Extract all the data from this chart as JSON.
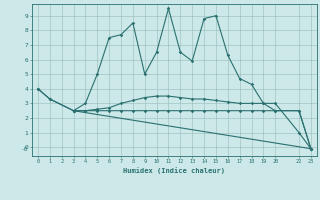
{
  "xlabel": "Humidex (Indice chaleur)",
  "bg_color": "#cce8e8",
  "grid_color": "#99bbbb",
  "line_color": "#2a7070",
  "series": [
    {
      "x": [
        0,
        1,
        3,
        4,
        5,
        6,
        7,
        8,
        9,
        10,
        11,
        12,
        13,
        14,
        15,
        16,
        17,
        18,
        19,
        20,
        22,
        23
      ],
      "y": [
        4.0,
        3.3,
        2.5,
        3.0,
        5.0,
        7.5,
        7.7,
        8.5,
        5.0,
        6.5,
        9.5,
        6.5,
        5.9,
        8.8,
        9.0,
        6.3,
        4.7,
        4.3,
        3.0,
        3.0,
        1.0,
        -0.1
      ]
    },
    {
      "x": [
        0,
        1,
        3,
        4,
        5,
        6,
        7,
        8,
        9,
        10,
        11,
        12,
        13,
        14,
        15,
        16,
        17,
        18,
        19,
        20,
        22,
        23
      ],
      "y": [
        4.0,
        3.3,
        2.5,
        2.5,
        2.6,
        2.7,
        3.0,
        3.2,
        3.4,
        3.5,
        3.5,
        3.4,
        3.3,
        3.3,
        3.2,
        3.1,
        3.0,
        3.0,
        3.0,
        2.5,
        2.5,
        -0.1
      ]
    },
    {
      "x": [
        3,
        4,
        5,
        6,
        7,
        8,
        9,
        10,
        11,
        12,
        13,
        14,
        15,
        16,
        17,
        18,
        19,
        20,
        22,
        23
      ],
      "y": [
        2.5,
        2.5,
        2.5,
        2.5,
        2.5,
        2.5,
        2.5,
        2.5,
        2.5,
        2.5,
        2.5,
        2.5,
        2.5,
        2.5,
        2.5,
        2.5,
        2.5,
        2.5,
        2.5,
        -0.1
      ]
    },
    {
      "x": [
        3,
        23
      ],
      "y": [
        2.5,
        -0.1
      ]
    }
  ],
  "xlim": [
    -0.5,
    23.5
  ],
  "ylim": [
    -0.6,
    9.8
  ],
  "xticks": [
    0,
    1,
    2,
    3,
    4,
    5,
    6,
    7,
    8,
    9,
    10,
    11,
    12,
    13,
    14,
    15,
    16,
    17,
    18,
    19,
    20,
    22,
    23
  ],
  "xtick_labels": [
    "0",
    "1",
    "2",
    "3",
    "4",
    "5",
    "6",
    "7",
    "8",
    "9",
    "10",
    "11",
    "12",
    "13",
    "14",
    "15",
    "16",
    "17",
    "18",
    "19",
    "20",
    "22",
    "23"
  ],
  "yticks": [
    0,
    1,
    2,
    3,
    4,
    5,
    6,
    7,
    8,
    9
  ],
  "ytick_labels": [
    "0",
    "1",
    "2",
    "3",
    "4",
    "5",
    "6",
    "7",
    "8",
    "9"
  ],
  "neg0_y": -0.1
}
